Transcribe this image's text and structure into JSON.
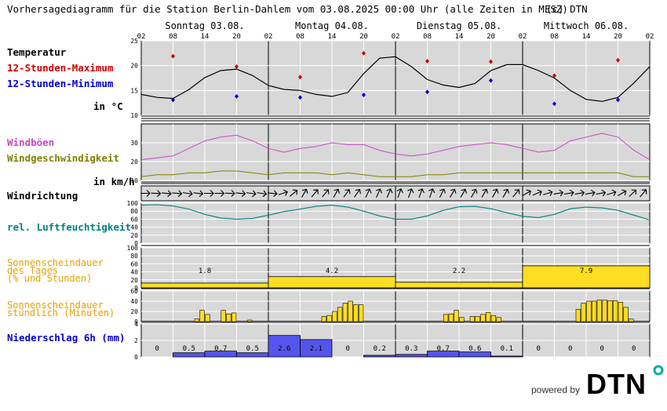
{
  "header": {
    "title": "Vorhersagediagramm für die Station Berlin-Dahlem vom 03.08.2025 00:00 Uhr (alle Zeiten in MESZ)",
    "copyright": "(c) DTN"
  },
  "days": [
    "Sonntag 03.08.",
    "Montag 04.08.",
    "Dienstag 05.08.",
    "Mittwoch 06.08."
  ],
  "hour_ticks": [
    "02",
    "08",
    "14",
    "20",
    "02",
    "08",
    "14",
    "20",
    "02",
    "08",
    "14",
    "20",
    "02",
    "08",
    "14",
    "20",
    "02"
  ],
  "labels": {
    "temperatur": "Temperatur",
    "max": "12-Stunden-Maximum",
    "min": "12-Stunden-Minimum",
    "temp_unit": "in °C",
    "windboeen": "Windböen",
    "windgeschw": "Windgeschwindigkeit",
    "wind_unit": "in km/h",
    "windrichtung": "Windrichtung",
    "feuchte": "rel. Luftfeuchtigkeit",
    "sonne_tag_1": "Sonnenscheindauer",
    "sonne_tag_2": "des Tages",
    "sonne_tag_3": "(% und Stunden)",
    "sonne_std_1": "Sonnenscheindauer",
    "sonne_std_2": "stündlich (Minuten)",
    "niederschlag": "Niederschlag 6h (mm)"
  },
  "colors": {
    "panel_bg": "#d8d8d8",
    "grid": "#ffffff",
    "temperature": "#000000",
    "max": "#cc0000",
    "min": "#0000cc",
    "gust": "#cc44cc",
    "wind": "#808000",
    "humidity": "#008080",
    "sun": "#ffdd22",
    "sun_label": "#e8a000",
    "precip": "#5555ee",
    "precip_label": "#0000cc"
  },
  "footer": {
    "powered_by": "powered by",
    "logo": "DTN"
  },
  "chart_data": [
    {
      "panel": "temperature",
      "type": "line",
      "ylim": [
        10,
        25
      ],
      "yticks": [
        10,
        15,
        20,
        25
      ],
      "x_hours": [
        0,
        3,
        6,
        9,
        12,
        15,
        18,
        21,
        24,
        27,
        30,
        33,
        36,
        39,
        42,
        45,
        48,
        51,
        54,
        57,
        60,
        63,
        66,
        69,
        72,
        75,
        78,
        81,
        84,
        87,
        90,
        93,
        96
      ],
      "series": [
        {
          "values": [
            14.2,
            13.6,
            13.4,
            15.2,
            17.6,
            19.0,
            19.3,
            18.0,
            16.0,
            15.2,
            15.0,
            14.2,
            13.8,
            14.6,
            18.4,
            21.5,
            21.8,
            19.8,
            17.2,
            16.1,
            15.6,
            16.4,
            19.0,
            20.2,
            20.2,
            19.0,
            17.5,
            15.0,
            13.2,
            12.8,
            13.6,
            16.5,
            19.8
          ]
        },
        {
          "name": "12-Stunden-Maximum",
          "points": [
            [
              6,
              21.9
            ],
            [
              18,
              19.8
            ],
            [
              30,
              17.7
            ],
            [
              42,
              22.5
            ],
            [
              54,
              20.9
            ],
            [
              66,
              20.8
            ],
            [
              78,
              18.0
            ],
            [
              90,
              21.1
            ]
          ]
        },
        {
          "name": "12-Stunden-Minimum",
          "points": [
            [
              6,
              13.1
            ],
            [
              18,
              13.8
            ],
            [
              30,
              13.6
            ],
            [
              42,
              14.1
            ],
            [
              54,
              14.7
            ],
            [
              66,
              17.0
            ],
            [
              78,
              12.3
            ],
            [
              90,
              13.1
            ]
          ]
        }
      ]
    },
    {
      "panel": "wind",
      "type": "line",
      "ylim": [
        10,
        40
      ],
      "yticks": [
        10,
        20,
        30
      ],
      "x_hours": [
        0,
        3,
        6,
        9,
        12,
        15,
        18,
        21,
        24,
        27,
        30,
        33,
        36,
        39,
        42,
        45,
        48,
        51,
        54,
        57,
        60,
        63,
        66,
        69,
        72,
        75,
        78,
        81,
        84,
        87,
        90,
        93,
        96
      ],
      "series": [
        {
          "name": "Windböen",
          "values": [
            21,
            22,
            23,
            27,
            31,
            33,
            34,
            31,
            27,
            25,
            27,
            28,
            30,
            29,
            29,
            26,
            24,
            23,
            24,
            26,
            28,
            29,
            30,
            29,
            27,
            25,
            26,
            31,
            33,
            35,
            33,
            26,
            21
          ]
        },
        {
          "name": "Windgeschwindigkeit",
          "values": [
            12,
            13,
            13,
            14,
            14,
            15,
            15,
            14,
            13,
            14,
            14,
            14,
            13,
            14,
            13,
            12,
            12,
            12,
            13,
            13,
            14,
            14,
            14,
            14,
            14,
            14,
            14,
            14,
            14,
            14,
            14,
            12,
            12
          ]
        }
      ]
    },
    {
      "panel": "wind_direction",
      "type": "scatter",
      "x_hours": [
        0,
        3,
        6,
        9,
        12,
        15,
        18,
        21,
        24,
        27,
        30,
        33,
        36,
        39,
        42,
        45,
        48,
        51,
        54,
        57,
        60,
        63,
        66,
        69,
        72,
        75,
        78,
        81,
        84,
        87,
        90,
        93,
        96
      ],
      "directions_deg": [
        90,
        95,
        95,
        100,
        90,
        90,
        95,
        100,
        95,
        60,
        30,
        45,
        30,
        40,
        25,
        25,
        20,
        20,
        20,
        30,
        30,
        30,
        30,
        30,
        60,
        70,
        80,
        80,
        80,
        80,
        60,
        40,
        40
      ]
    },
    {
      "panel": "humidity",
      "type": "line",
      "ylim": [
        0,
        100
      ],
      "yticks": [
        0,
        20,
        40,
        60,
        80,
        100
      ],
      "x_hours": [
        0,
        3,
        6,
        9,
        12,
        15,
        18,
        21,
        24,
        27,
        30,
        33,
        36,
        39,
        42,
        45,
        48,
        51,
        54,
        57,
        60,
        63,
        66,
        69,
        72,
        75,
        78,
        81,
        84,
        87,
        90,
        93,
        96
      ],
      "series": [
        {
          "name": "rel. Luftfeuchtigkeit",
          "values": [
            95,
            96,
            93,
            85,
            72,
            63,
            60,
            62,
            70,
            79,
            85,
            92,
            95,
            90,
            80,
            68,
            60,
            60,
            68,
            82,
            91,
            92,
            86,
            76,
            67,
            64,
            72,
            86,
            90,
            88,
            82,
            70,
            58
          ]
        }
      ]
    },
    {
      "panel": "daily_sunshine",
      "type": "bar",
      "ylim": [
        0,
        100
      ],
      "yticks": [
        0,
        20,
        40,
        60,
        80,
        100
      ],
      "categories": [
        "Sonntag 03.08.",
        "Montag 04.08.",
        "Dienstag 05.08.",
        "Mittwoch 06.08."
      ],
      "values_percent": [
        12,
        28,
        14,
        55
      ],
      "hours": [
        "1.8",
        "4.2",
        "2.2",
        "7.9"
      ]
    },
    {
      "panel": "hourly_sunshine",
      "type": "bar",
      "ylim": [
        0,
        60
      ],
      "yticks": [
        0,
        20,
        40,
        60
      ],
      "start_hour": 2,
      "values_min": [
        0,
        0,
        0,
        0,
        0,
        0,
        0,
        0,
        0,
        0,
        5,
        22,
        14,
        0,
        0,
        22,
        15,
        17,
        0,
        0,
        3,
        0,
        0,
        0,
        0,
        0,
        0,
        0,
        0,
        0,
        0,
        0,
        0,
        0,
        10,
        12,
        20,
        28,
        36,
        40,
        33,
        33,
        0,
        0,
        0,
        0,
        0,
        0,
        0,
        0,
        0,
        0,
        0,
        0,
        0,
        0,
        0,
        14,
        15,
        22,
        8,
        0,
        10,
        10,
        14,
        18,
        12,
        8,
        0,
        0,
        0,
        0,
        0,
        0,
        0,
        0,
        0,
        0,
        0,
        0,
        0,
        0,
        24,
        36,
        40,
        40,
        42,
        42,
        41,
        41,
        38,
        28,
        5,
        0,
        0,
        0
      ]
    },
    {
      "panel": "precipitation_6h",
      "type": "bar",
      "ylim": [
        0,
        4
      ],
      "yticks": [
        0,
        2,
        4
      ],
      "categories": [
        "02-08",
        "08-14",
        "14-20",
        "20-02",
        "02-08",
        "08-14",
        "14-20",
        "20-02",
        "02-08",
        "08-14",
        "14-20",
        "20-02",
        "02-08",
        "08-14",
        "14-20",
        "20-02"
      ],
      "values": [
        0,
        0.5,
        0.7,
        0.5,
        2.6,
        2.1,
        0,
        0.2,
        0.3,
        0.7,
        0.6,
        0.1,
        0,
        0,
        0,
        0
      ],
      "value_labels": [
        "0",
        "0.5",
        "0.7",
        "0.5",
        "2.6",
        "2.1",
        "0",
        "0.2",
        "0.3",
        "0.7",
        "0.6",
        "0.1",
        "0",
        "0",
        "0",
        "0"
      ]
    }
  ]
}
